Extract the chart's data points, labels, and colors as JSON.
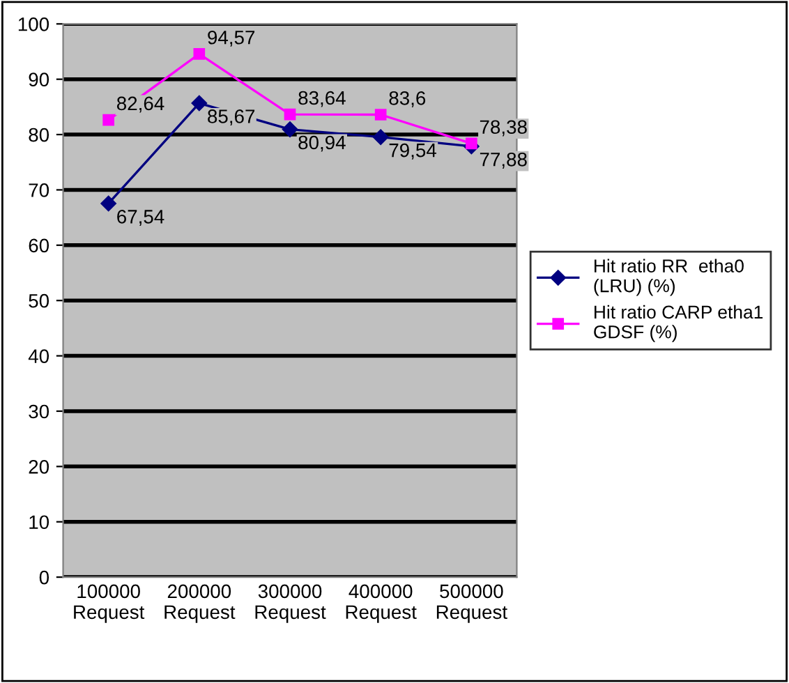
{
  "chart_data": {
    "type": "line",
    "categories": [
      "100000\nRequest",
      "200000\nRequest",
      "300000\nRequest",
      "400000\nRequest",
      "500000\nRequest"
    ],
    "series": [
      {
        "name": "Hit ratio RR  etha0\n(LRU) (%)",
        "color": "#000080",
        "marker": "diamond",
        "values": [
          67.54,
          85.67,
          80.94,
          79.54,
          77.88
        ],
        "value_labels": [
          "67,54",
          "85,67",
          "80,94",
          "79,54",
          "77,88"
        ]
      },
      {
        "name": "Hit ratio CARP etha1\nGDSF (%)",
        "color": "#ff00ff",
        "marker": "square",
        "values": [
          82.64,
          94.57,
          83.64,
          83.6,
          78.38
        ],
        "value_labels": [
          "82,64",
          "94,57",
          "83,64",
          "83,6",
          "78,38"
        ]
      }
    ],
    "ylim": [
      0,
      100
    ],
    "yticks": [
      0,
      10,
      20,
      30,
      40,
      50,
      60,
      70,
      80,
      90,
      100
    ],
    "grid": "y",
    "legend": "right"
  }
}
